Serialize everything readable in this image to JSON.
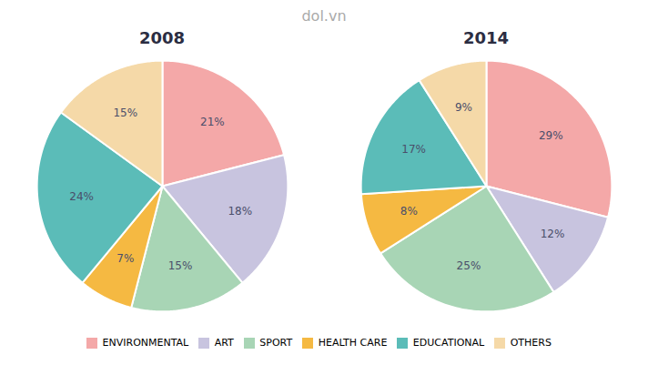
{
  "chart_data": [
    {
      "type": "pie",
      "title": "2008",
      "categories": [
        "ENVIRONMENTAL",
        "ART",
        "SPORT",
        "HEALTH CARE",
        "EDUCATIONAL",
        "OTHERS"
      ],
      "values": [
        21,
        18,
        15,
        7,
        24,
        15
      ],
      "value_labels": [
        "21%",
        "18%",
        "15%",
        "7%",
        "24%",
        "15%"
      ],
      "colors": [
        "#F4A8A8",
        "#C8C4DF",
        "#A8D5B5",
        "#F5B942",
        "#5BBCB8",
        "#F5D9A8"
      ],
      "data_labels": true,
      "legend": "bottom",
      "annotations": [
        "dol.vn"
      ]
    },
    {
      "type": "pie",
      "title": "2014",
      "categories": [
        "ENVIRONMENTAL",
        "ART",
        "SPORT",
        "HEALTH CARE",
        "EDUCATIONAL",
        "OTHERS"
      ],
      "values": [
        29,
        12,
        25,
        8,
        17,
        9
      ],
      "value_labels": [
        "29%",
        "12%",
        "25%",
        "8%",
        "17%",
        "9%"
      ],
      "colors": [
        "#F4A8A8",
        "#C8C4DF",
        "#A8D5B5",
        "#F5B942",
        "#5BBCB8",
        "#F5D9A8"
      ],
      "data_labels": true,
      "legend": "bottom"
    }
  ]
}
